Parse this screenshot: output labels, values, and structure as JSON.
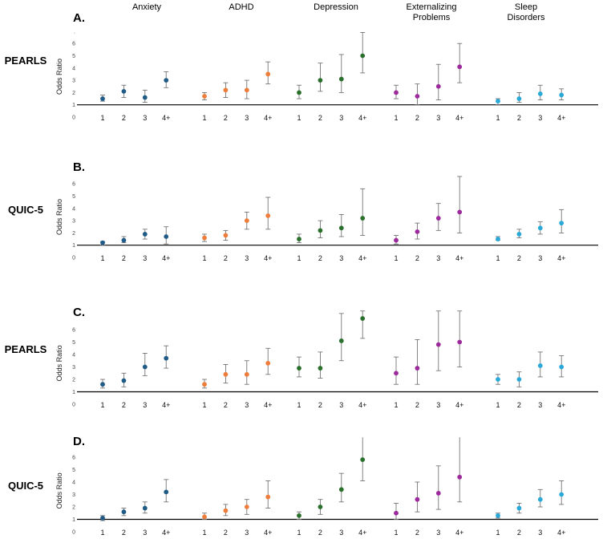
{
  "figure": {
    "column_headers": [
      {
        "line1": "Anxiety",
        "line2": ""
      },
      {
        "line1": "ADHD",
        "line2": ""
      },
      {
        "line1": "Depression",
        "line2": ""
      },
      {
        "line1": "Externalizing",
        "line2": "Problems"
      },
      {
        "line1": "Sleep",
        "line2": "Disorders"
      }
    ],
    "colors": {
      "Anxiety": "#1f5b86",
      "ADHD": "#ee7d3b",
      "Depression": "#2a6f2b",
      "Externalizing Problems": "#9c2a9c",
      "Sleep Disorders": "#2aa9d9"
    }
  },
  "chart_data": [
    {
      "type": "scatter",
      "panel": "A.",
      "row_label": "PEARLS",
      "ylabel": "Odds Ratio",
      "yticks": [
        "0",
        "1",
        "2",
        "3",
        "4",
        "5",
        "6",
        "."
      ],
      "ylim": [
        0,
        7
      ],
      "reference_line": 1,
      "categories": [
        "1",
        "2",
        "3",
        "4+"
      ],
      "series": [
        {
          "name": "Anxiety",
          "values": [
            1.5,
            2.1,
            1.6,
            3.0
          ],
          "lower": [
            1.3,
            1.6,
            1.2,
            2.4
          ],
          "upper": [
            1.8,
            2.6,
            2.2,
            3.7
          ]
        },
        {
          "name": "ADHD",
          "values": [
            1.7,
            2.2,
            2.2,
            3.5
          ],
          "lower": [
            1.4,
            1.6,
            1.5,
            2.7
          ],
          "upper": [
            2.0,
            2.8,
            3.0,
            4.5
          ]
        },
        {
          "name": "Depression",
          "values": [
            2.0,
            3.0,
            3.1,
            5.0
          ],
          "lower": [
            1.5,
            2.1,
            2.0,
            3.6
          ],
          "upper": [
            2.6,
            4.4,
            5.1,
            6.9
          ]
        },
        {
          "name": "Externalizing Problems",
          "values": [
            2.0,
            1.7,
            2.5,
            4.1
          ],
          "lower": [
            1.5,
            1.0,
            1.4,
            2.8
          ],
          "upper": [
            2.6,
            2.7,
            4.3,
            6.0
          ]
        },
        {
          "name": "Sleep Disorders",
          "values": [
            1.3,
            1.5,
            1.9,
            1.8
          ],
          "lower": [
            1.0,
            1.2,
            1.4,
            1.4
          ],
          "upper": [
            1.5,
            2.0,
            2.6,
            2.3
          ]
        }
      ]
    },
    {
      "type": "scatter",
      "panel": "B.",
      "row_label": "QUIC-5",
      "ylabel": "Odds Ratio",
      "yticks": [
        "0",
        "1",
        "2",
        "3",
        "4",
        "5",
        "6"
      ],
      "ylim": [
        0,
        7
      ],
      "reference_line": 1,
      "categories": [
        "1",
        "2",
        "3",
        "4+"
      ],
      "series": [
        {
          "name": "Anxiety",
          "values": [
            1.2,
            1.4,
            1.9,
            1.7
          ],
          "lower": [
            1.0,
            1.2,
            1.5,
            1.1
          ],
          "upper": [
            1.3,
            1.7,
            2.3,
            2.5
          ]
        },
        {
          "name": "ADHD",
          "values": [
            1.6,
            1.8,
            3.0,
            3.4
          ],
          "lower": [
            1.3,
            1.4,
            2.3,
            2.3
          ],
          "upper": [
            1.9,
            2.2,
            3.7,
            4.9
          ]
        },
        {
          "name": "Depression",
          "values": [
            1.5,
            2.2,
            2.4,
            3.2
          ],
          "lower": [
            1.2,
            1.6,
            1.7,
            1.8
          ],
          "upper": [
            1.9,
            3.0,
            3.5,
            5.6
          ]
        },
        {
          "name": "Externalizing Problems",
          "values": [
            1.4,
            2.1,
            3.2,
            3.7
          ],
          "lower": [
            1.1,
            1.5,
            2.2,
            2.0
          ],
          "upper": [
            1.8,
            2.8,
            4.4,
            6.6
          ]
        },
        {
          "name": "Sleep Disorders",
          "values": [
            1.5,
            1.9,
            2.4,
            2.8
          ],
          "lower": [
            1.4,
            1.6,
            1.9,
            2.0
          ],
          "upper": [
            1.7,
            2.3,
            2.9,
            3.9
          ]
        }
      ]
    },
    {
      "type": "scatter",
      "panel": "C.",
      "row_label": "PEARLS",
      "ylabel": "Odds Ratio",
      "yticks": [
        "0",
        "1",
        "2",
        "3",
        "4",
        "5",
        "6"
      ],
      "ylim": [
        0,
        7
      ],
      "reference_line": 1,
      "categories": [
        "1",
        "2",
        "3",
        "4+"
      ],
      "series": [
        {
          "name": "Anxiety",
          "values": [
            1.6,
            1.9,
            3.0,
            3.7
          ],
          "lower": [
            1.3,
            1.4,
            2.3,
            2.9
          ],
          "upper": [
            2.0,
            2.5,
            4.1,
            4.7
          ]
        },
        {
          "name": "ADHD",
          "values": [
            1.6,
            2.4,
            2.4,
            3.3
          ],
          "lower": [
            1.3,
            1.7,
            1.6,
            2.4
          ],
          "upper": [
            2.0,
            3.2,
            3.5,
            4.5
          ]
        },
        {
          "name": "Depression",
          "values": [
            2.9,
            2.9,
            5.1,
            6.9
          ],
          "lower": [
            2.2,
            2.1,
            3.5,
            5.3
          ],
          "upper": [
            3.8,
            4.2,
            7.3,
            7.5
          ]
        },
        {
          "name": "Externalizing Problems",
          "values": [
            2.5,
            2.9,
            4.8,
            5.0
          ],
          "lower": [
            1.6,
            1.6,
            2.7,
            3.0
          ],
          "upper": [
            3.8,
            5.2,
            7.5,
            7.5
          ]
        },
        {
          "name": "Sleep Disorders",
          "values": [
            2.0,
            2.0,
            3.1,
            3.0
          ],
          "lower": [
            1.6,
            1.4,
            2.2,
            2.2
          ],
          "upper": [
            2.4,
            2.6,
            4.2,
            3.9
          ]
        }
      ]
    },
    {
      "type": "scatter",
      "panel": "D.",
      "row_label": "QUIC-5",
      "ylabel": "Odds Ratio",
      "yticks": [
        "0",
        "1",
        "2",
        "3",
        "4",
        "5",
        "6"
      ],
      "ylim": [
        0,
        7
      ],
      "reference_line": 1,
      "categories": [
        "1",
        "2",
        "3",
        "4+"
      ],
      "series": [
        {
          "name": "Anxiety",
          "values": [
            1.1,
            1.6,
            1.9,
            3.2
          ],
          "lower": [
            0.9,
            1.3,
            1.5,
            2.4
          ],
          "upper": [
            1.3,
            1.9,
            2.4,
            4.2
          ]
        },
        {
          "name": "ADHD",
          "values": [
            1.2,
            1.7,
            2.0,
            2.8
          ],
          "lower": [
            1.0,
            1.3,
            1.4,
            1.9
          ],
          "upper": [
            1.5,
            2.2,
            2.6,
            4.1
          ]
        },
        {
          "name": "Depression",
          "values": [
            1.3,
            2.0,
            3.4,
            5.8
          ],
          "lower": [
            1.0,
            1.4,
            2.4,
            4.1
          ],
          "upper": [
            1.6,
            2.6,
            4.7,
            8.0
          ]
        },
        {
          "name": "Externalizing Problems",
          "values": [
            1.5,
            2.6,
            3.1,
            4.4
          ],
          "lower": [
            1.0,
            1.6,
            1.8,
            2.4
          ],
          "upper": [
            2.3,
            4.0,
            5.3,
            8.0
          ]
        },
        {
          "name": "Sleep Disorders",
          "values": [
            1.3,
            1.9,
            2.6,
            3.0
          ],
          "lower": [
            1.1,
            1.5,
            2.0,
            2.2
          ],
          "upper": [
            1.5,
            2.3,
            3.4,
            4.1
          ]
        }
      ]
    }
  ]
}
